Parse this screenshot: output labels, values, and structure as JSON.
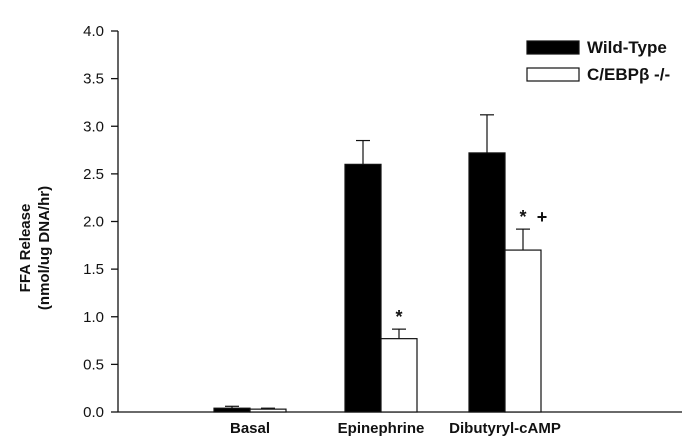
{
  "chart_data": {
    "type": "bar",
    "title": "",
    "xlabel": "",
    "ylabel_line1": "FFA Release",
    "ylabel_line2": "(nmol/ug DNA/hr)",
    "ylim": [
      0,
      4.0
    ],
    "yticks": [
      "0.0",
      "0.5",
      "1.0",
      "1.5",
      "2.0",
      "2.5",
      "3.0",
      "3.5",
      "4.0"
    ],
    "categories": [
      "Basal",
      "Epinephrine",
      "Dibutyryl-cAMP"
    ],
    "series": [
      {
        "name": "Wild-Type",
        "color": "#000000",
        "values": [
          0.04,
          2.6,
          2.72
        ],
        "errors": [
          0.02,
          0.25,
          0.4
        ]
      },
      {
        "name": "C/EBPβ -/-",
        "color": "#ffffff",
        "values": [
          0.03,
          0.77,
          1.7
        ],
        "errors": [
          0.01,
          0.1,
          0.22
        ]
      }
    ],
    "annotations": [
      {
        "category": 1,
        "series": 1,
        "text": "*"
      },
      {
        "category": 2,
        "series": 1,
        "text": "*"
      },
      {
        "category": 2,
        "series": 1,
        "text": "+"
      }
    ],
    "legend_position": "top-right",
    "grid": false
  }
}
